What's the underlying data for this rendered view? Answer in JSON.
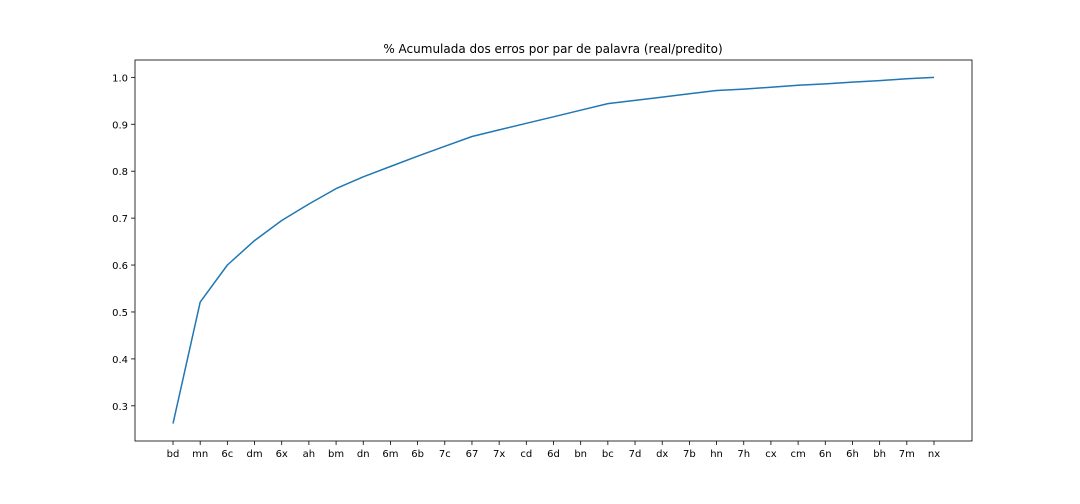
{
  "chart_data": {
    "type": "line",
    "title": "% Acumulada dos erros por par de palavra (real/predito)",
    "xlabel": "",
    "ylabel": "",
    "categories": [
      "bd",
      "mn",
      "6c",
      "dm",
      "6x",
      "ah",
      "bm",
      "dn",
      "6m",
      "6b",
      "7c",
      "67",
      "7x",
      "cd",
      "6d",
      "bn",
      "bc",
      "7d",
      "dx",
      "7b",
      "hn",
      "7h",
      "cx",
      "cm",
      "6n",
      "6h",
      "bh",
      "7m",
      "nx"
    ],
    "series": [
      {
        "values": [
          0.262,
          0.521,
          0.6,
          0.652,
          0.695,
          0.73,
          0.763,
          0.788,
          0.81,
          0.832,
          0.853,
          0.874,
          0.888,
          0.902,
          0.916,
          0.93,
          0.944,
          0.951,
          0.958,
          0.965,
          0.972,
          0.975,
          0.979,
          0.983,
          0.986,
          0.99,
          0.993,
          0.997,
          1.0
        ],
        "color": "#1f77b4"
      }
    ],
    "yticks": [
      "0.3",
      "0.4",
      "0.5",
      "0.6",
      "0.7",
      "0.8",
      "0.9",
      "1.0"
    ],
    "ylim": [
      0.225,
      1.037
    ],
    "grid": false,
    "legend": "none"
  }
}
